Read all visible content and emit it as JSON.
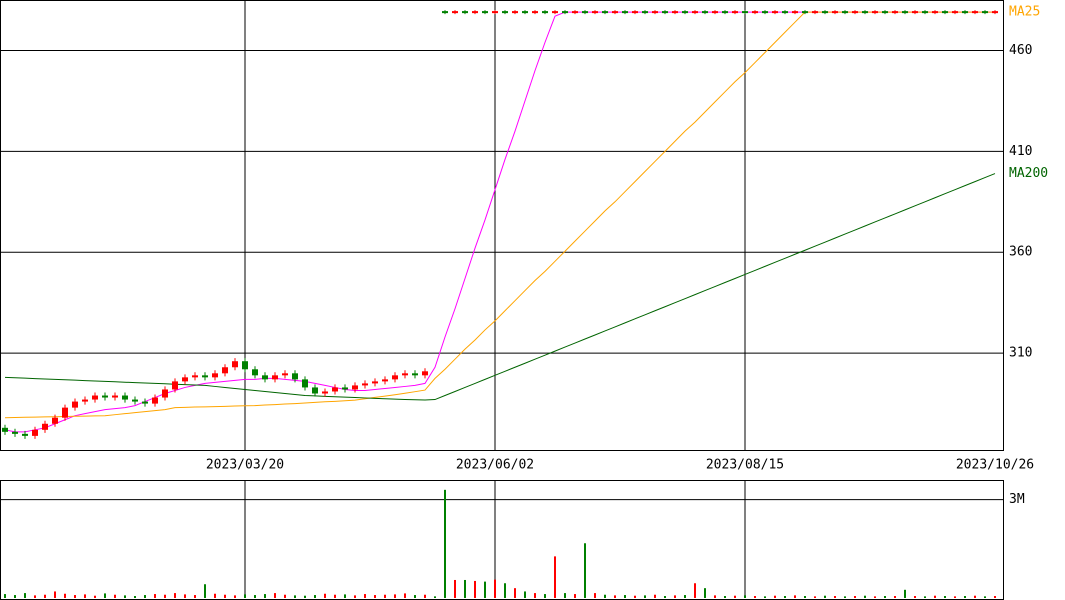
{
  "chart_data": {
    "type": "candlestick",
    "categories": [
      null,
      null,
      null,
      null,
      null,
      null,
      null,
      null,
      null,
      null,
      null,
      null,
      null,
      null,
      null,
      null,
      null,
      null,
      null,
      null,
      null,
      null,
      null,
      null,
      "2023/03/20",
      null,
      null,
      null,
      null,
      null,
      null,
      null,
      null,
      null,
      null,
      null,
      null,
      null,
      null,
      null,
      null,
      null,
      null,
      null,
      null,
      null,
      null,
      null,
      null,
      "2023/06/02",
      null,
      null,
      null,
      null,
      null,
      null,
      null,
      null,
      null,
      null,
      null,
      null,
      null,
      null,
      null,
      null,
      null,
      null,
      null,
      null,
      null,
      null,
      null,
      null,
      "2023/08/15",
      null,
      null,
      null,
      null,
      null,
      null,
      null,
      null,
      null,
      null,
      null,
      null,
      null,
      null,
      null,
      null,
      null,
      null,
      null,
      null,
      null,
      null,
      null,
      null,
      "2023/10/26"
    ],
    "open": [
      273,
      271,
      270,
      269,
      272,
      275,
      278,
      283,
      286,
      287,
      289,
      288,
      289,
      287,
      286,
      285,
      288,
      292,
      296,
      298,
      299,
      298,
      300,
      303,
      306,
      302,
      299,
      297,
      299,
      300,
      297,
      293,
      290,
      291,
      293,
      292,
      294,
      295,
      296,
      297,
      299,
      300,
      299,
      null,
      479.5,
      478.5,
      479.5,
      478.5,
      479.5,
      478.5,
      479.5,
      478.5,
      479.5,
      478.5,
      479.5,
      478.5,
      479.5,
      478.5,
      479.5,
      478.5,
      479.5,
      478.5,
      479.5,
      478.5,
      479.5,
      478.5,
      479.5,
      478.5,
      479.5,
      478.5,
      479.5,
      478.5,
      479.5,
      478.5,
      479.5,
      478.5,
      479.5,
      478.5,
      479.5,
      478.5,
      479.5,
      478.5,
      479.5,
      478.5,
      479.5,
      478.5,
      479.5,
      478.5,
      479.5,
      478.5,
      479.5,
      478.5,
      479.5,
      478.5,
      479.5,
      478.5,
      479.5,
      478.5,
      479.5,
      478.5
    ],
    "high": [
      274.5,
      272.5,
      271.5,
      273.5,
      276.5,
      279.5,
      284.5,
      287.5,
      288.5,
      290.5,
      290.5,
      290.5,
      290.5,
      288.5,
      287.5,
      289.5,
      293.5,
      297.5,
      299.5,
      300.5,
      300.5,
      301.5,
      304.5,
      307.5,
      307.5,
      303.5,
      300.5,
      300.5,
      301.5,
      301.5,
      298.5,
      294.5,
      292.5,
      294.5,
      294.5,
      295.5,
      296.5,
      297.5,
      298.5,
      300.5,
      301.5,
      301.5,
      302.5,
      null,
      480,
      480,
      480,
      480,
      480,
      480,
      480,
      480,
      480,
      480,
      480,
      480,
      480,
      480,
      480,
      480,
      480,
      480,
      480,
      480,
      480,
      480,
      480,
      480,
      480,
      480,
      480,
      480,
      480,
      480,
      480,
      480,
      480,
      480,
      480,
      480,
      480,
      480,
      480,
      480,
      480,
      480,
      480,
      480,
      480,
      480,
      480,
      480,
      480,
      480,
      480,
      480,
      480,
      480,
      480,
      480
    ],
    "low": [
      269.5,
      268.5,
      267.5,
      267.5,
      270.5,
      273.5,
      276.5,
      281.5,
      284.5,
      285.5,
      286.5,
      286.5,
      285.5,
      284.5,
      283.5,
      283.5,
      286.5,
      290.5,
      294.5,
      296.5,
      296.5,
      296.5,
      298.5,
      301.5,
      300.5,
      297.5,
      295.5,
      295.5,
      297.5,
      295.5,
      291.5,
      288.5,
      288.5,
      289.5,
      290.5,
      290.5,
      292.5,
      293.5,
      294.5,
      295.5,
      297.5,
      297.5,
      297.5,
      null,
      478,
      478,
      478,
      478,
      478,
      478,
      478,
      478,
      478,
      478,
      478,
      478,
      478,
      478,
      478,
      478,
      478,
      478,
      478,
      478,
      478,
      478,
      478,
      478,
      478,
      478,
      478,
      478,
      478,
      478,
      478,
      478,
      478,
      478,
      478,
      478,
      478,
      478,
      478,
      478,
      478,
      478,
      478,
      478,
      478,
      478,
      478,
      478,
      478,
      478,
      478,
      478,
      478,
      478,
      478,
      478
    ],
    "close": [
      271,
      270,
      269,
      272,
      275,
      278,
      283,
      286,
      287,
      289,
      288,
      289,
      287,
      286,
      285,
      288,
      292,
      296,
      298,
      299,
      298,
      300,
      303,
      306,
      302,
      299,
      297,
      299,
      300,
      297,
      293,
      290,
      291,
      293,
      292,
      294,
      295,
      296,
      297,
      299,
      300,
      299,
      301,
      null,
      478.5,
      479.5,
      478.5,
      479.5,
      478.5,
      479.5,
      478.5,
      479.5,
      478.5,
      479.5,
      478.5,
      479.5,
      478.5,
      479.5,
      478.5,
      479.5,
      478.5,
      479.5,
      478.5,
      479.5,
      478.5,
      479.5,
      478.5,
      479.5,
      478.5,
      479.5,
      478.5,
      479.5,
      478.5,
      479.5,
      478.5,
      479.5,
      478.5,
      479.5,
      478.5,
      479.5,
      478.5,
      479.5,
      478.5,
      479.5,
      478.5,
      479.5,
      478.5,
      479.5,
      478.5,
      479.5,
      478.5,
      479.5,
      478.5,
      479.5,
      478.5,
      479.5,
      478.5,
      479.5,
      478.5,
      479.5
    ],
    "up_color": "#ff0000",
    "down_color": "#008000",
    "ylim": [
      262,
      485
    ],
    "yticks": [
      310,
      360,
      410,
      460
    ],
    "grid": true,
    "series": [
      {
        "color": "#ff00ff",
        "values": [
          272,
          271,
          271,
          272,
          273,
          275,
          277,
          279,
          280,
          281,
          282,
          282.5,
          283,
          284,
          286,
          288,
          290,
          291.5,
          293,
          294,
          295,
          295.5,
          296,
          296.5,
          297,
          297,
          297.5,
          297.5,
          297,
          296.5,
          296,
          295,
          294,
          293,
          292,
          291.5,
          291.5,
          292,
          292.5,
          293,
          293.5,
          294,
          295,
          303,
          318,
          332,
          347,
          362,
          376,
          391,
          406,
          420,
          435,
          450,
          464,
          477,
          479,
          479,
          479,
          479,
          479,
          479,
          479,
          479,
          479,
          479,
          479,
          479,
          479,
          479,
          479,
          479,
          479,
          479,
          479,
          479,
          479,
          479,
          479,
          479,
          479,
          479,
          479,
          479,
          479,
          479,
          479,
          479,
          479,
          479,
          479,
          479,
          479,
          479,
          479,
          479,
          479,
          479,
          479,
          479
        ]
      },
      {
        "name": "MA25",
        "color": "#ffa500",
        "values": [
          278,
          278.1,
          278.2,
          278.3,
          278.4,
          278.5,
          278.6,
          278.7,
          278.8,
          278.9,
          279,
          279.5,
          280,
          280.5,
          281,
          281.5,
          282,
          283,
          283.1,
          283.3,
          283.4,
          283.5,
          283.6,
          283.8,
          283.9,
          284,
          284.3,
          284.5,
          284.8,
          285,
          285.3,
          285.6,
          285.9,
          286.1,
          286.4,
          286.7,
          287.4,
          288.1,
          288.7,
          289.4,
          290.1,
          290.9,
          291.7,
          297.5,
          302,
          307,
          312,
          316.5,
          321.5,
          326,
          331,
          336,
          341,
          346,
          350.5,
          355.5,
          360.5,
          365.5,
          370.5,
          375.5,
          380.5,
          385,
          390,
          395,
          400,
          405,
          410,
          415,
          420,
          424.5,
          429.5,
          434.5,
          439.5,
          444.5,
          449,
          454,
          459,
          464,
          469,
          474,
          479,
          479,
          479,
          479,
          479,
          479,
          479,
          479,
          479,
          479,
          479,
          479,
          479,
          479,
          479,
          479,
          479,
          479,
          479,
          479
        ]
      },
      {
        "name": "MA200",
        "color": "#006400",
        "values": [
          298,
          297.8,
          297.6,
          297.4,
          297.2,
          297,
          296.8,
          296.6,
          296.4,
          296.2,
          296,
          295.8,
          295.6,
          295.4,
          295.2,
          295,
          294.8,
          294.6,
          294.4,
          294.2,
          294,
          293.5,
          293,
          292.5,
          292,
          291.5,
          291,
          290.5,
          290,
          289.5,
          289,
          288.8,
          288.6,
          288.4,
          288.2,
          288,
          287.8,
          287.6,
          287.4,
          287.2,
          287,
          286.9,
          286.8,
          287,
          289,
          291,
          293,
          295,
          297,
          299,
          301,
          303,
          305,
          307,
          309,
          311,
          313,
          315,
          317,
          319,
          321,
          323,
          325,
          327,
          329,
          331,
          333,
          335,
          337,
          339,
          341,
          343,
          345,
          347,
          349,
          351,
          353,
          355,
          357,
          359,
          361,
          363,
          365,
          367,
          369,
          371,
          373,
          375,
          377,
          379,
          381,
          383,
          385,
          387,
          389,
          391,
          393,
          395,
          397,
          399
        ]
      }
    ],
    "volume": {
      "values": [
        120000,
        90000,
        150000,
        80000,
        100000,
        200000,
        130000,
        90000,
        110000,
        70000,
        140000,
        100000,
        80000,
        60000,
        90000,
        120000,
        100000,
        150000,
        110000,
        90000,
        420000,
        130000,
        100000,
        80000,
        110000,
        90000,
        120000,
        150000,
        100000,
        80000,
        70000,
        90000,
        130000,
        100000,
        110000,
        80000,
        120000,
        90000,
        100000,
        110000,
        140000,
        90000,
        100000,
        50000,
        3300000,
        550000,
        550000,
        520000,
        500000,
        560000,
        450000,
        300000,
        200000,
        150000,
        120000,
        1270000,
        150000,
        120000,
        1670000,
        150000,
        100000,
        80000,
        90000,
        70000,
        80000,
        100000,
        60000,
        80000,
        90000,
        450000,
        300000,
        80000,
        60000,
        70000,
        80000,
        60000,
        50000,
        70000,
        60000,
        80000,
        60000,
        50000,
        70000,
        60000,
        50000,
        60000,
        70000,
        50000,
        60000,
        60000,
        250000,
        60000,
        50000,
        70000,
        60000,
        50000,
        60000,
        70000,
        50000,
        60000
      ],
      "ylim": [
        0,
        3600000
      ],
      "yticks": [
        {
          "value": 3000000,
          "label": "3M"
        }
      ]
    }
  }
}
